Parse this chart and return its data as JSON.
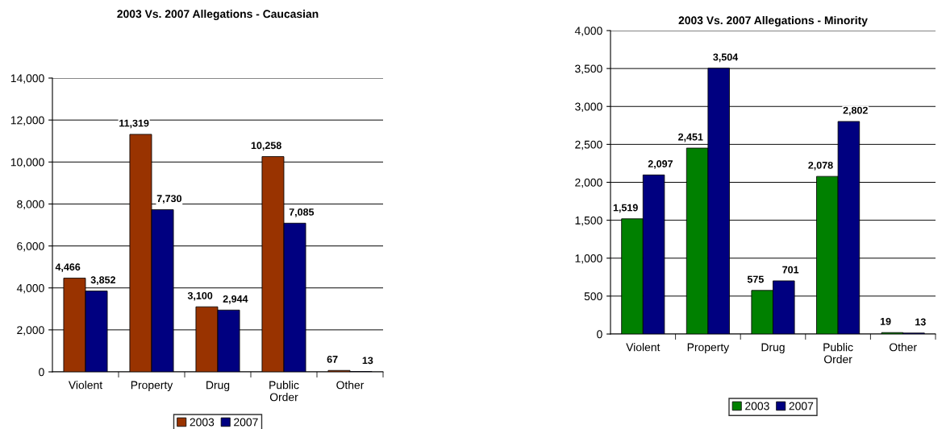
{
  "chart_data": [
    {
      "type": "bar",
      "title": "2003 Vs. 2007 Allegations - Caucasian",
      "categories": [
        "Violent",
        "Property",
        "Drug",
        "Public\nOrder",
        "Other"
      ],
      "series": [
        {
          "name": "2003",
          "color": "#993300",
          "values": [
            4466,
            11319,
            3100,
            10258,
            67
          ],
          "value_labels": [
            "4,466",
            "11,319",
            "3,100",
            "10,258",
            "67"
          ]
        },
        {
          "name": "2007",
          "color": "#000080",
          "values": [
            3852,
            7730,
            2944,
            7085,
            13
          ],
          "value_labels": [
            "3,852",
            "7,730",
            "2,944",
            "7,085",
            "13"
          ]
        }
      ],
      "ylim": [
        0,
        14000
      ],
      "yticks": [
        0,
        {
          "value": 2000,
          "label": "2,000"
        },
        {
          "value": 4000,
          "label": "4,000"
        },
        {
          "value": 6000,
          "label": "6,000"
        },
        {
          "value": 8000,
          "label": "8,000"
        },
        {
          "value": 10000,
          "label": "10,000"
        },
        {
          "value": 12000,
          "label": "12,000"
        },
        {
          "value": 14000,
          "label": "14,000"
        }
      ],
      "grid": "y",
      "legend": "bottom"
    },
    {
      "type": "bar",
      "title": "2003 Vs. 2007 Allegations - Minority",
      "categories": [
        "Violent",
        "Property",
        "Drug",
        "Public\nOrder",
        "Other"
      ],
      "series": [
        {
          "name": "2003",
          "color": "#008000",
          "values": [
            1519,
            2451,
            575,
            2078,
            19
          ],
          "value_labels": [
            "1,519",
            "2,451",
            "575",
            "2,078",
            "19"
          ]
        },
        {
          "name": "2007",
          "color": "#000080",
          "values": [
            2097,
            3504,
            701,
            2802,
            13
          ],
          "value_labels": [
            "2,097",
            "3,504",
            "701",
            "2,802",
            "13"
          ]
        }
      ],
      "ylim": [
        0,
        4000
      ],
      "yticks": [
        0,
        500,
        {
          "value": 1000,
          "label": "1,000"
        },
        {
          "value": 1500,
          "label": "1,500"
        },
        {
          "value": 2000,
          "label": "2,000"
        },
        {
          "value": 2500,
          "label": "2,500"
        },
        {
          "value": 3000,
          "label": "3,000"
        },
        {
          "value": 3500,
          "label": "3,500"
        },
        {
          "value": 4000,
          "label": "4,000"
        }
      ],
      "grid": "y",
      "legend": "bottom"
    }
  ]
}
